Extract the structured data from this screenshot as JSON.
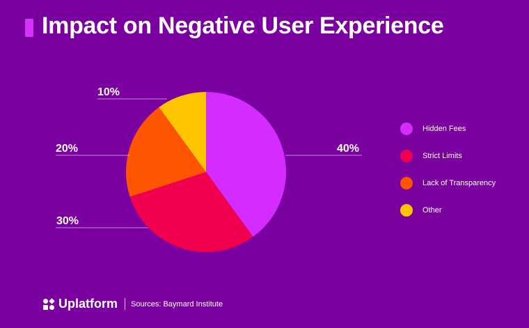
{
  "title": "Impact on Negative User Experience",
  "colors": {
    "background": "#7a00a0",
    "accent_bar": "#d633ff"
  },
  "chart_data": {
    "type": "pie",
    "categories": [
      "Hidden Fees",
      "Strict Limits",
      "Lack of Transparency",
      "Other"
    ],
    "values": [
      40,
      30,
      20,
      10
    ],
    "value_labels": [
      "40%",
      "30%",
      "20%",
      "10%"
    ],
    "colors": [
      "#d42cff",
      "#f0004f",
      "#ff5400",
      "#ffc400"
    ],
    "legend_position": "right",
    "start_angle_deg": 0,
    "direction": "clockwise"
  },
  "footer": {
    "brand": "Uplatform",
    "brand_icon": "uplatform-logo-icon",
    "source": "Sources: Baymard Institute"
  }
}
